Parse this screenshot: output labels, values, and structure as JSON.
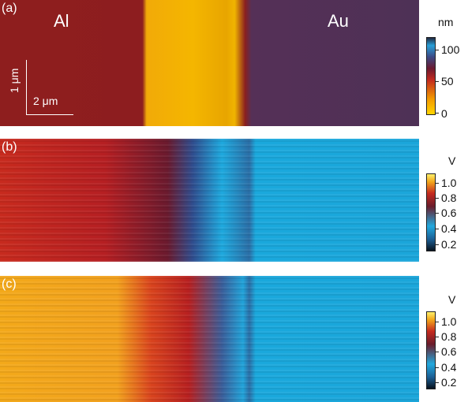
{
  "panels": [
    {
      "label": "(a)",
      "materials": [
        "Al",
        "Au"
      ],
      "scale_vertical": "1 μm",
      "scale_horizontal": "2 μm",
      "colorbar": {
        "unit": "nm",
        "ticks": [
          "100",
          "50",
          "0"
        ]
      }
    },
    {
      "label": "(b)",
      "colorbar": {
        "unit": "V",
        "ticks": [
          "1.0",
          "0.8",
          "0.6",
          "0.4",
          "0.2"
        ]
      }
    },
    {
      "label": "(c)",
      "colorbar": {
        "unit": "V",
        "ticks": [
          "1.0",
          "0.8",
          "0.6",
          "0.4",
          "0.2"
        ]
      }
    }
  ]
}
